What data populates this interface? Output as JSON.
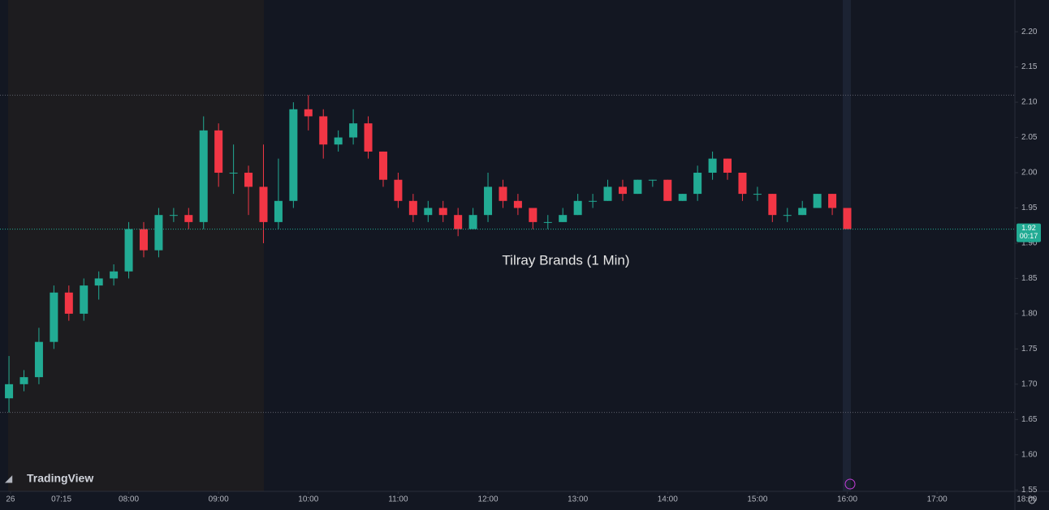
{
  "chart_data": {
    "type": "candlestick",
    "annotation": "Tilray Brands (1 Min)",
    "watermark": "TradingView",
    "up_color": "#22ab94",
    "down_color": "#f23645",
    "x": [
      "06:40",
      "06:50",
      "07:00",
      "07:10",
      "07:20",
      "07:30",
      "07:40",
      "07:50",
      "08:00",
      "08:10",
      "08:20",
      "08:30",
      "08:40",
      "08:50",
      "09:00",
      "09:10",
      "09:20",
      "09:30",
      "09:40",
      "09:50",
      "10:00",
      "10:10",
      "10:20",
      "10:30",
      "10:40",
      "10:50",
      "11:00",
      "11:10",
      "11:20",
      "11:30",
      "11:40",
      "11:50",
      "12:00",
      "12:10",
      "12:20",
      "12:30",
      "12:40",
      "12:50",
      "13:00",
      "13:10",
      "13:20",
      "13:30",
      "13:40",
      "13:50",
      "14:00",
      "14:10",
      "14:20",
      "14:30",
      "14:40",
      "14:50",
      "15:00",
      "15:10",
      "15:20",
      "15:30",
      "15:40",
      "15:50",
      "16:00"
    ],
    "open": [
      1.68,
      1.7,
      1.71,
      1.76,
      1.83,
      1.8,
      1.84,
      1.85,
      1.86,
      1.92,
      1.89,
      1.94,
      1.94,
      1.93,
      2.06,
      2.0,
      2.0,
      1.98,
      1.93,
      1.96,
      2.09,
      2.08,
      2.04,
      2.05,
      2.07,
      2.03,
      1.99,
      1.96,
      1.94,
      1.95,
      1.94,
      1.92,
      1.94,
      1.98,
      1.96,
      1.95,
      1.93,
      1.93,
      1.94,
      1.96,
      1.96,
      1.98,
      1.97,
      1.99,
      1.99,
      1.96,
      1.97,
      2.0,
      2.02,
      2.0,
      1.97,
      1.97,
      1.94,
      1.94,
      1.95,
      1.97,
      1.95
    ],
    "high": [
      1.74,
      1.72,
      1.78,
      1.84,
      1.84,
      1.85,
      1.86,
      1.87,
      1.93,
      1.93,
      1.95,
      1.95,
      1.95,
      2.08,
      2.07,
      2.04,
      2.01,
      2.04,
      2.02,
      2.1,
      2.11,
      2.09,
      2.06,
      2.09,
      2.08,
      2.03,
      2.0,
      1.97,
      1.96,
      1.96,
      1.95,
      1.95,
      2.0,
      1.99,
      1.97,
      1.95,
      1.94,
      1.95,
      1.97,
      1.97,
      1.99,
      1.99,
      1.99,
      1.99,
      1.99,
      1.97,
      2.01,
      2.03,
      2.02,
      2.0,
      1.98,
      1.97,
      1.95,
      1.96,
      1.97,
      1.97,
      1.95
    ],
    "low": [
      1.66,
      1.69,
      1.7,
      1.75,
      1.79,
      1.79,
      1.82,
      1.84,
      1.85,
      1.88,
      1.88,
      1.93,
      1.92,
      1.92,
      1.98,
      1.97,
      1.94,
      1.9,
      1.92,
      1.95,
      2.06,
      2.02,
      2.03,
      2.04,
      2.02,
      1.98,
      1.95,
      1.93,
      1.93,
      1.93,
      1.91,
      1.92,
      1.93,
      1.95,
      1.94,
      1.92,
      1.92,
      1.93,
      1.94,
      1.95,
      1.96,
      1.96,
      1.97,
      1.98,
      1.96,
      1.96,
      1.96,
      1.99,
      1.99,
      1.96,
      1.96,
      1.93,
      1.93,
      1.94,
      1.95,
      1.94,
      1.92
    ],
    "close": [
      1.7,
      1.71,
      1.76,
      1.83,
      1.8,
      1.84,
      1.85,
      1.86,
      1.92,
      1.89,
      1.94,
      1.94,
      1.93,
      2.06,
      2.0,
      2.0,
      1.98,
      1.93,
      1.96,
      2.09,
      2.08,
      2.04,
      2.05,
      2.07,
      2.03,
      1.99,
      1.96,
      1.94,
      1.95,
      1.94,
      1.92,
      1.94,
      1.98,
      1.96,
      1.95,
      1.93,
      1.93,
      1.94,
      1.96,
      1.96,
      1.98,
      1.97,
      1.99,
      1.99,
      1.96,
      1.97,
      2.0,
      2.02,
      2.0,
      1.97,
      1.97,
      1.94,
      1.94,
      1.95,
      1.97,
      1.95,
      1.92
    ],
    "xlim": [
      "06:34",
      "17:52"
    ],
    "ylim": [
      1.548,
      2.245
    ],
    "xticks": [
      {
        "value": "06:41",
        "label": "26"
      },
      "07:15",
      "08:00",
      "09:00",
      "10:00",
      "11:00",
      "12:00",
      "13:00",
      "14:00",
      "15:00",
      "16:00",
      "17:00",
      "18:00"
    ],
    "yticks": [
      1.55,
      {
        "value": 1.6,
        "label": "1.60"
      },
      1.65,
      {
        "value": 1.7,
        "label": "1.70"
      },
      1.75,
      {
        "value": 1.8,
        "label": "1.80"
      },
      1.85,
      {
        "value": 1.9,
        "label": "1.90"
      },
      1.95,
      {
        "value": 2.0,
        "label": "2.00"
      },
      2.05,
      {
        "value": 2.1,
        "label": "2.10"
      },
      2.15,
      {
        "value": 2.2,
        "label": "2.20"
      }
    ],
    "hlines": [
      2.11,
      1.66
    ],
    "last_price": {
      "value": 1.92,
      "label": "1.92",
      "countdown": "00:17"
    }
  }
}
